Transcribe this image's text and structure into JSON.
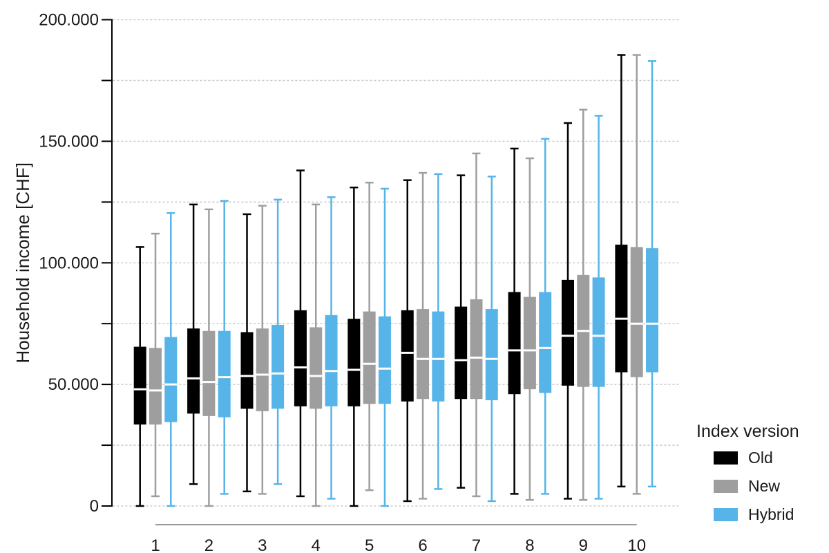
{
  "chart_data": {
    "type": "boxplot",
    "title": "",
    "xlabel": "",
    "ylabel": "Household income [CHF]",
    "ylim": [
      0,
      200000
    ],
    "grid": "horizontal dotted gridlines every 25000, from 0 to 200000",
    "legend_position": "right",
    "categories": [
      "1",
      "2",
      "3",
      "4",
      "5",
      "6",
      "7",
      "8",
      "9",
      "10"
    ],
    "y_ticks": [
      {
        "value": 0,
        "label": "0"
      },
      {
        "value": 25000,
        "label": ""
      },
      {
        "value": 50000,
        "label": "50.000"
      },
      {
        "value": 75000,
        "label": ""
      },
      {
        "value": 100000,
        "label": "100.000"
      },
      {
        "value": 125000,
        "label": ""
      },
      {
        "value": 150000,
        "label": "150.000"
      },
      {
        "value": 175000,
        "label": ""
      },
      {
        "value": 200000,
        "label": "200.000"
      }
    ],
    "legend": {
      "title": "Index version",
      "entries": [
        {
          "label": "Old",
          "color": "#000000"
        },
        {
          "label": "New",
          "color": "#9E9E9E"
        },
        {
          "label": "Hybrid",
          "color": "#56B4E9"
        }
      ]
    },
    "series": [
      {
        "name": "Old",
        "color": "#000000",
        "boxes": [
          {
            "min": 0,
            "q1": 33500,
            "median": 48000,
            "q3": 65500,
            "max": 106500
          },
          {
            "min": 9000,
            "q1": 38000,
            "median": 52500,
            "q3": 73000,
            "max": 124000
          },
          {
            "min": 6000,
            "q1": 40000,
            "median": 53500,
            "q3": 71500,
            "max": 120000
          },
          {
            "min": 4000,
            "q1": 41000,
            "median": 57000,
            "q3": 80500,
            "max": 138000
          },
          {
            "min": 0,
            "q1": 41000,
            "median": 56000,
            "q3": 77000,
            "max": 131000
          },
          {
            "min": 2000,
            "q1": 43000,
            "median": 63000,
            "q3": 80500,
            "max": 134000
          },
          {
            "min": 7500,
            "q1": 44000,
            "median": 60000,
            "q3": 82000,
            "max": 136000
          },
          {
            "min": 5000,
            "q1": 46000,
            "median": 64000,
            "q3": 88000,
            "max": 147000
          },
          {
            "min": 3000,
            "q1": 49500,
            "median": 70000,
            "q3": 93000,
            "max": 157500
          },
          {
            "min": 8000,
            "q1": 55000,
            "median": 77000,
            "q3": 107500,
            "max": 185500
          }
        ]
      },
      {
        "name": "New",
        "color": "#9E9E9E",
        "boxes": [
          {
            "min": 4000,
            "q1": 33500,
            "median": 47500,
            "q3": 65000,
            "max": 112000
          },
          {
            "min": 0,
            "q1": 37000,
            "median": 51000,
            "q3": 72000,
            "max": 122000
          },
          {
            "min": 5000,
            "q1": 39000,
            "median": 54000,
            "q3": 73000,
            "max": 123500
          },
          {
            "min": 0,
            "q1": 40000,
            "median": 53500,
            "q3": 73500,
            "max": 124000
          },
          {
            "min": 6500,
            "q1": 42000,
            "median": 58500,
            "q3": 80000,
            "max": 133000
          },
          {
            "min": 3000,
            "q1": 44000,
            "median": 60500,
            "q3": 81000,
            "max": 137000
          },
          {
            "min": 4000,
            "q1": 44000,
            "median": 61000,
            "q3": 85000,
            "max": 145000
          },
          {
            "min": 2500,
            "q1": 48000,
            "median": 64000,
            "q3": 86000,
            "max": 143000
          },
          {
            "min": 2500,
            "q1": 49000,
            "median": 72000,
            "q3": 95000,
            "max": 163000
          },
          {
            "min": 5000,
            "q1": 53000,
            "median": 75000,
            "q3": 106500,
            "max": 185500
          }
        ]
      },
      {
        "name": "Hybrid",
        "color": "#56B4E9",
        "boxes": [
          {
            "min": 0,
            "q1": 34500,
            "median": 50000,
            "q3": 69500,
            "max": 120500
          },
          {
            "min": 5000,
            "q1": 36500,
            "median": 53000,
            "q3": 72000,
            "max": 125500
          },
          {
            "min": 9000,
            "q1": 40000,
            "median": 54500,
            "q3": 74500,
            "max": 126000
          },
          {
            "min": 3000,
            "q1": 41000,
            "median": 55500,
            "q3": 78500,
            "max": 127000
          },
          {
            "min": 0,
            "q1": 42000,
            "median": 56500,
            "q3": 78000,
            "max": 130500
          },
          {
            "min": 7000,
            "q1": 43000,
            "median": 60500,
            "q3": 80000,
            "max": 136500
          },
          {
            "min": 2000,
            "q1": 43500,
            "median": 60500,
            "q3": 81000,
            "max": 135500
          },
          {
            "min": 5000,
            "q1": 46500,
            "median": 65000,
            "q3": 88000,
            "max": 151000
          },
          {
            "min": 3000,
            "q1": 49000,
            "median": 70000,
            "q3": 94000,
            "max": 160500
          },
          {
            "min": 8000,
            "q1": 55000,
            "median": 75000,
            "q3": 106000,
            "max": 183000
          }
        ]
      }
    ]
  },
  "colors": {
    "background": "#FFFFFF",
    "y_axis": "#000000",
    "x_axis_line": "#999999",
    "gridline": "#CBCBCB",
    "text": "#1A1A1A",
    "median_line": "#FFFFFF"
  }
}
